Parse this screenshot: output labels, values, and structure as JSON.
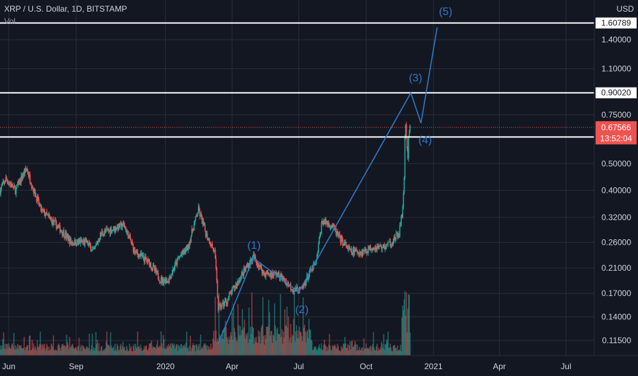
{
  "header": {
    "symbol": "XRP / U.S. Dollar, 1D, BITSTAMP",
    "volume_label": "Vol",
    "currency": "USD"
  },
  "colors": {
    "background": "#131722",
    "grid": "#2a2e39",
    "up": "#26a69a",
    "down": "#ef5350",
    "wave": "#2f79c5",
    "hline": "#ffffff",
    "price_tag": "#ef5350"
  },
  "chart_data": {
    "type": "candlestick",
    "scale": "log",
    "x_ticks": [
      "Jun",
      "Sep",
      "2020",
      "Apr",
      "Jul",
      "Oct",
      "2021",
      "Apr",
      "Jul"
    ],
    "y_ticks": [
      "1.40000",
      "1.10000",
      "0.75000",
      "0.50000",
      "0.40000",
      "0.32000",
      "0.26000",
      "0.21000",
      "0.17000",
      "0.14000",
      "0.11500"
    ],
    "horizontal_levels": [
      "1.60789",
      "0.90020",
      "0.62367"
    ],
    "last_price": "0.67566",
    "countdown": "13:52:04",
    "wave_labels": [
      "(1)",
      "(2)",
      "(3)",
      "(4)",
      "(5)"
    ],
    "price_path": [
      [
        "2019-05-20",
        0.4
      ],
      [
        "2019-05-28",
        0.44
      ],
      [
        "2019-06-10",
        0.4
      ],
      [
        "2019-06-25",
        0.48
      ],
      [
        "2019-07-05",
        0.4
      ],
      [
        "2019-07-15",
        0.34
      ],
      [
        "2019-07-25",
        0.32
      ],
      [
        "2019-08-10",
        0.29
      ],
      [
        "2019-08-25",
        0.26
      ],
      [
        "2019-09-15",
        0.26
      ],
      [
        "2019-09-25",
        0.24
      ],
      [
        "2019-10-05",
        0.28
      ],
      [
        "2019-10-20",
        0.29
      ],
      [
        "2019-11-05",
        0.3
      ],
      [
        "2019-11-20",
        0.24
      ],
      [
        "2019-12-10",
        0.22
      ],
      [
        "2019-12-25",
        0.19
      ],
      [
        "2020-01-05",
        0.19
      ],
      [
        "2020-01-20",
        0.23
      ],
      [
        "2020-02-01",
        0.25
      ],
      [
        "2020-02-15",
        0.34
      ],
      [
        "2020-02-25",
        0.28
      ],
      [
        "2020-03-08",
        0.24
      ],
      [
        "2020-03-13",
        0.15
      ],
      [
        "2020-03-25",
        0.16
      ],
      [
        "2020-04-10",
        0.19
      ],
      [
        "2020-04-30",
        0.23
      ],
      [
        "2020-05-15",
        0.2
      ],
      [
        "2020-06-01",
        0.2
      ],
      [
        "2020-06-25",
        0.175
      ],
      [
        "2020-07-05",
        0.175
      ],
      [
        "2020-07-15",
        0.2
      ],
      [
        "2020-07-25",
        0.22
      ],
      [
        "2020-08-02",
        0.31
      ],
      [
        "2020-08-15",
        0.3
      ],
      [
        "2020-08-25",
        0.27
      ],
      [
        "2020-09-10",
        0.24
      ],
      [
        "2020-09-25",
        0.24
      ],
      [
        "2020-10-10",
        0.25
      ],
      [
        "2020-10-25",
        0.25
      ],
      [
        "2020-11-05",
        0.26
      ],
      [
        "2020-11-15",
        0.28
      ],
      [
        "2020-11-20",
        0.34
      ],
      [
        "2020-11-22",
        0.45
      ],
      [
        "2020-11-23",
        0.62
      ],
      [
        "2020-11-24",
        0.7
      ],
      [
        "2020-11-25",
        0.62
      ],
      [
        "2020-11-26",
        0.55
      ],
      [
        "2020-11-27",
        0.52
      ],
      [
        "2020-11-28",
        0.62
      ],
      [
        "2020-11-29",
        0.64
      ],
      [
        "2020-11-30",
        0.67566
      ]
    ],
    "wave_path": [
      [
        "2020-03-13",
        0.112
      ],
      [
        "2020-04-30",
        0.228
      ],
      [
        "2020-07-01",
        0.172
      ],
      [
        "2020-12-01",
        0.9
      ],
      [
        "2020-12-15",
        0.7
      ],
      [
        "2021-01-06",
        1.55
      ]
    ]
  }
}
